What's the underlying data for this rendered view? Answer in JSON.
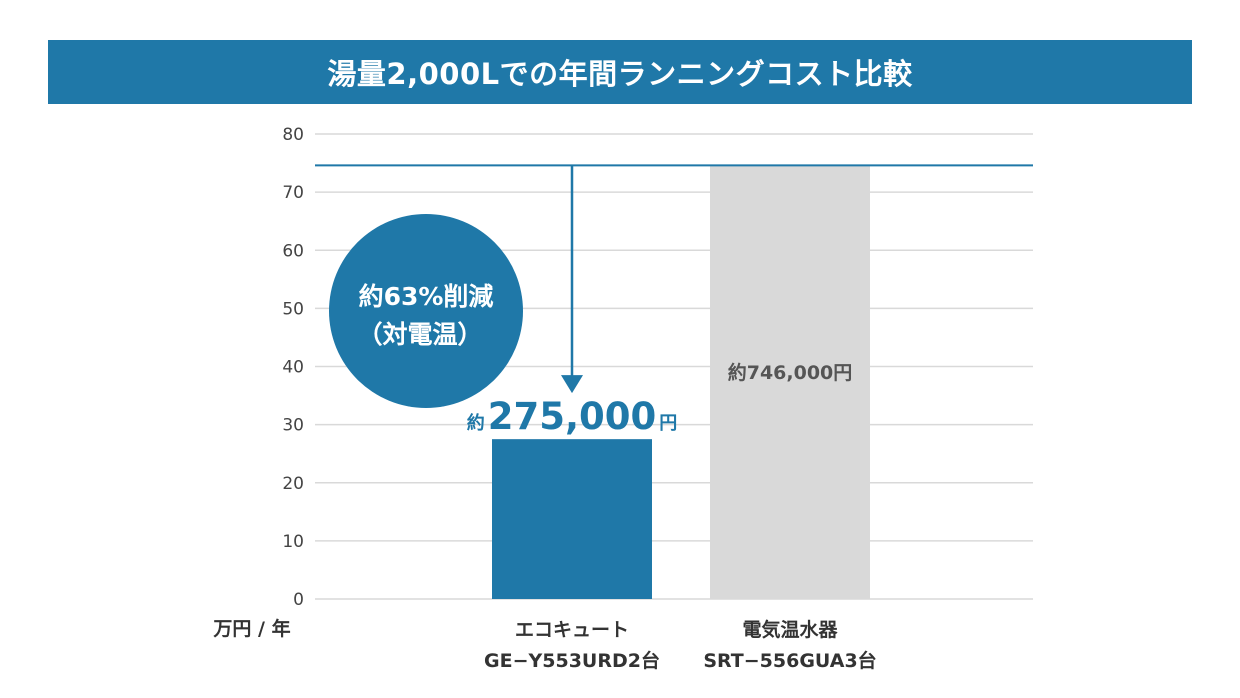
{
  "chart_data": {
    "type": "bar",
    "title": "湯量2,000Lでの年間ランニングコスト比較",
    "ylabel": "万円 / 年",
    "ylim": [
      0,
      80
    ],
    "yticks": [
      0,
      10,
      20,
      30,
      40,
      50,
      60,
      70,
      80
    ],
    "categories": [
      [
        "エコキュート",
        "GE−Y553URD2台"
      ],
      [
        "電気温水器",
        "SRT−556GUA3台"
      ]
    ],
    "values": [
      27.5,
      74.6
    ],
    "value_labels": [
      {
        "prefix": "約",
        "main": "275,000",
        "suffix": "円"
      },
      {
        "text": "約746,000円"
      }
    ],
    "reference_line": 74.6,
    "annotation": {
      "line1": "約63%削減",
      "line2": "（対電温）"
    },
    "grid": true,
    "colors": {
      "eco": "#1f78a8",
      "electric": "#d9d9d9",
      "grid": "#d9d9d9",
      "accent": "#1f78a8"
    }
  }
}
